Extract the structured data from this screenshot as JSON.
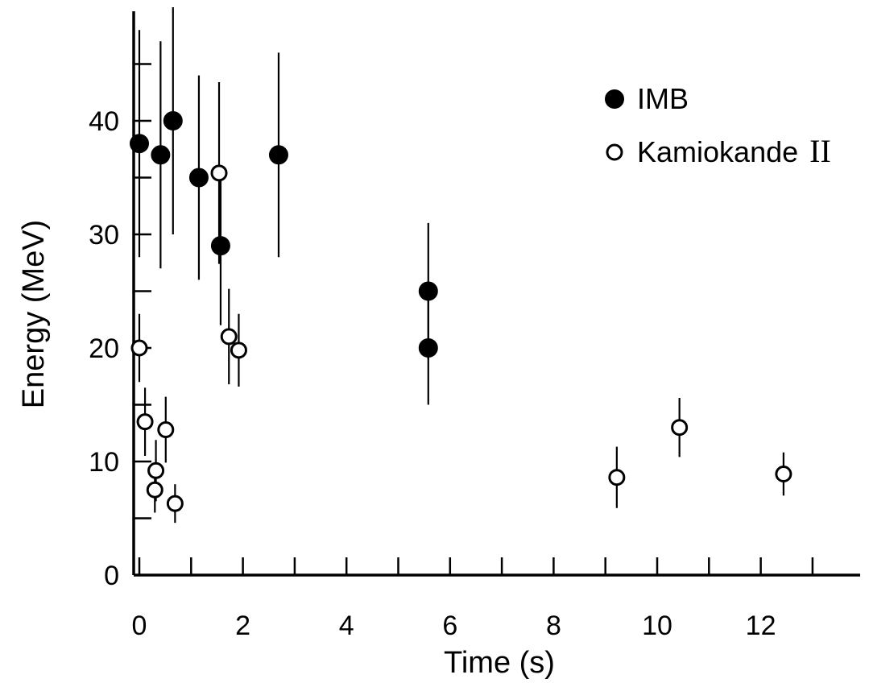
{
  "chart_data": {
    "type": "scatter",
    "xlabel": "Time (s)",
    "ylabel": "Energy (MeV)",
    "xlim": [
      0,
      13.6
    ],
    "ylim": [
      0,
      50
    ],
    "x_ticks": [
      "0",
      "2",
      "4",
      "6",
      "8",
      "10",
      "12"
    ],
    "y_ticks": [
      "0",
      "10",
      "20",
      "30",
      "40"
    ],
    "legend_position": "top-right",
    "legend": {
      "imb_label": "IMB",
      "kam_label": "Kamiokande",
      "kam_suffix": "II"
    },
    "series": [
      {
        "name": "IMB",
        "marker": "filled-circle",
        "points": [
          {
            "x": 0.0,
            "y": 38,
            "err": 10
          },
          {
            "x": 0.41,
            "y": 37,
            "err": 10
          },
          {
            "x": 0.65,
            "y": 40,
            "err": 10
          },
          {
            "x": 1.15,
            "y": 35,
            "err": 9
          },
          {
            "x": 1.57,
            "y": 29,
            "err": 7
          },
          {
            "x": 2.69,
            "y": 37,
            "err": 9
          },
          {
            "x": 5.58,
            "y": 25,
            "err": 6
          },
          {
            "x": 5.58,
            "y": 20,
            "err": 5
          }
        ]
      },
      {
        "name": "Kamiokande II",
        "marker": "open-circle",
        "points": [
          {
            "x": 0.0,
            "y": 20,
            "err": 3
          },
          {
            "x": 0.11,
            "y": 13.5,
            "err": 3
          },
          {
            "x": 0.3,
            "y": 7.5,
            "err": 2
          },
          {
            "x": 0.32,
            "y": 9.2,
            "err": 2.7
          },
          {
            "x": 0.51,
            "y": 12.8,
            "err": 2.9
          },
          {
            "x": 0.69,
            "y": 6.3,
            "err": 1.7
          },
          {
            "x": 1.54,
            "y": 35.4,
            "err": 8
          },
          {
            "x": 1.73,
            "y": 21,
            "err": 4.2
          },
          {
            "x": 1.92,
            "y": 19.8,
            "err": 3.2
          },
          {
            "x": 9.22,
            "y": 8.6,
            "err": 2.7
          },
          {
            "x": 10.43,
            "y": 13,
            "err": 2.6
          },
          {
            "x": 12.44,
            "y": 8.9,
            "err": 1.9
          }
        ]
      }
    ],
    "colors": {
      "ink": "#000000",
      "background": "#ffffff"
    }
  }
}
